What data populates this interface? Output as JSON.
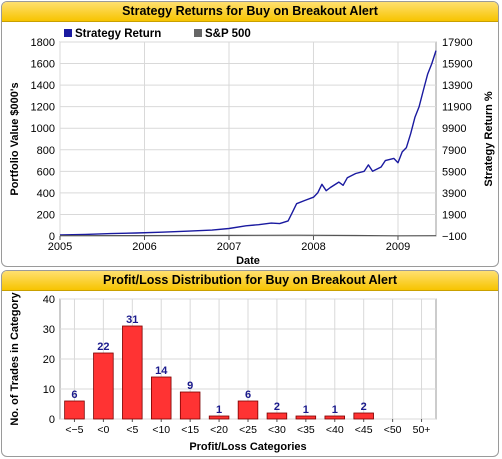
{
  "colors": {
    "title_bar": "#f7c400",
    "strategy_line": "#1a1aa0",
    "sp500_line": "#555555",
    "bar_fill": "#ff3333",
    "grid": "#d9d9d9",
    "value_label": "#1a1a8c"
  },
  "top_chart": {
    "title": "Strategy Returns for Buy on Breakout Alert",
    "legend": [
      {
        "name": "Strategy Return",
        "color": "#1a1aa0"
      },
      {
        "name": "S&P 500",
        "color": "#666666"
      }
    ],
    "ylabel_left": "Portfolio Value $000's",
    "ylabel_right": "Strategy Return %",
    "xlabel": "Date"
  },
  "bottom_chart": {
    "title": "Profit/Loss Distribution for Buy on Breakout Alert",
    "ylabel": "No. of Trades in Category",
    "xlabel": "Profit/Loss Categories"
  },
  "chart_data": [
    {
      "type": "line",
      "title": "Strategy Returns for Buy on Breakout Alert",
      "xlabel": "Date",
      "ylabel": "Portfolio Value $000's",
      "y2label": "Strategy Return %",
      "xlim": [
        2005.0,
        2009.45
      ],
      "ylim": [
        0,
        1800
      ],
      "y2lim": [
        -100,
        17900
      ],
      "xticks": [
        "2005",
        "2006",
        "2007",
        "2008",
        "2009"
      ],
      "yticks": [
        "0",
        "200",
        "400",
        "600",
        "800",
        "1000",
        "1200",
        "1400",
        "1600",
        "1800"
      ],
      "y2ticks": [
        "−100",
        "1900",
        "3900",
        "5900",
        "7900",
        "9900",
        "11900",
        "13900",
        "15900",
        "17900"
      ],
      "legend_position": "top-left",
      "grid": true,
      "series": [
        {
          "name": "Strategy Return",
          "x": [
            2005.0,
            2005.3,
            2005.6,
            2005.9,
            2006.2,
            2006.5,
            2006.8,
            2007.0,
            2007.2,
            2007.35,
            2007.5,
            2007.6,
            2007.7,
            2007.75,
            2007.8,
            2007.9,
            2008.0,
            2008.05,
            2008.1,
            2008.15,
            2008.2,
            2008.3,
            2008.35,
            2008.4,
            2008.5,
            2008.6,
            2008.65,
            2008.7,
            2008.8,
            2008.85,
            2008.95,
            2009.0,
            2009.05,
            2009.1,
            2009.15,
            2009.2,
            2009.25,
            2009.3,
            2009.35,
            2009.4,
            2009.45
          ],
          "y": [
            10,
            15,
            22,
            28,
            35,
            45,
            55,
            70,
            95,
            105,
            120,
            115,
            140,
            220,
            300,
            330,
            360,
            400,
            480,
            420,
            450,
            500,
            470,
            540,
            580,
            600,
            660,
            600,
            640,
            700,
            720,
            680,
            780,
            820,
            950,
            1100,
            1200,
            1350,
            1500,
            1600,
            1720
          ]
        },
        {
          "name": "S&P 500",
          "x": [
            2005.0,
            2006.0,
            2007.0,
            2007.8,
            2008.5,
            2009.0,
            2009.45
          ],
          "y": [
            3,
            4,
            6,
            7,
            5,
            2,
            3
          ]
        }
      ]
    },
    {
      "type": "bar",
      "title": "Profit/Loss Distribution for Buy on Breakout Alert",
      "xlabel": "Profit/Loss Categories",
      "ylabel": "No. of Trades in Category",
      "categories": [
        "<−5",
        "<0",
        "<5",
        "<10",
        "<15",
        "<20",
        "<25",
        "<30",
        "<35",
        "<40",
        "<45",
        "<50",
        "50+"
      ],
      "values": [
        6,
        22,
        31,
        14,
        9,
        1,
        6,
        2,
        1,
        1,
        2,
        0,
        0
      ],
      "value_labels": [
        "6",
        "22",
        "31",
        "14",
        "9",
        "1",
        "6",
        "2",
        "1",
        "1",
        "2",
        "",
        ""
      ],
      "ylim": [
        0,
        40
      ],
      "yticks": [
        "0",
        "10",
        "20",
        "30",
        "40"
      ],
      "grid": true
    }
  ]
}
